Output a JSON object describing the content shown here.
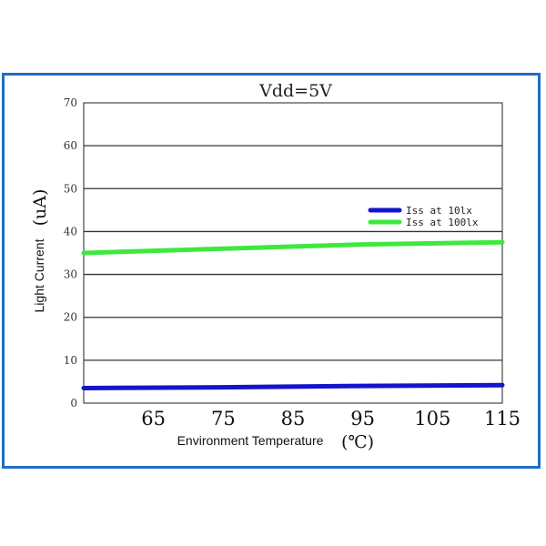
{
  "chart_data": {
    "type": "line",
    "title": "Vdd=5V",
    "xlabel": "Environment Temperature",
    "xlabel_unit": "(℃)",
    "ylabel": "Light Current",
    "ylabel_unit": "(uA)",
    "xlim": [
      55,
      115
    ],
    "ylim": [
      0,
      70
    ],
    "x_ticks": [
      "65",
      "75",
      "85",
      "95",
      "105",
      "115"
    ],
    "x_tick_values": [
      65,
      75,
      85,
      95,
      105,
      115
    ],
    "y_ticks": [
      "0",
      "10",
      "20",
      "30",
      "40",
      "50",
      "60",
      "70"
    ],
    "y_tick_values": [
      0,
      10,
      20,
      30,
      40,
      50,
      60,
      70
    ],
    "grid": "horizontal",
    "legend_position": "top-right",
    "series": [
      {
        "name": "Iss at 10lx",
        "color": "#1414cc",
        "x": [
          55,
          75,
          95,
          115
        ],
        "y": [
          3.5,
          3.7,
          4.0,
          4.2
        ]
      },
      {
        "name": "Iss at 100lx",
        "color": "#3ee83e",
        "x": [
          55,
          75,
          95,
          115
        ],
        "y": [
          35,
          36,
          37,
          37.5
        ]
      }
    ]
  }
}
